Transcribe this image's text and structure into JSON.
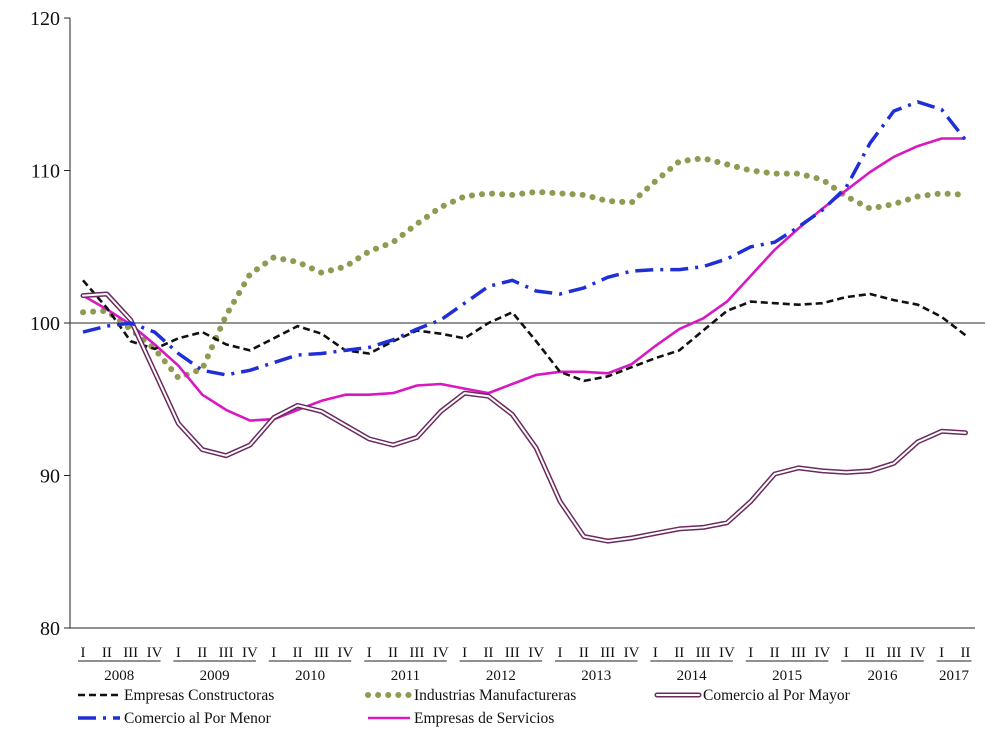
{
  "chart_data": {
    "type": "line",
    "title": "",
    "xlabel": "",
    "ylabel": "",
    "ylim": [
      80,
      120
    ],
    "yticks": [
      80,
      90,
      100,
      110,
      120
    ],
    "reference_line": 100,
    "grid": false,
    "legend_position": "bottom",
    "quarter_labels": [
      "I",
      "II",
      "III",
      "IV"
    ],
    "years": [
      "2008",
      "2009",
      "2010",
      "2011",
      "2012",
      "2013",
      "2014",
      "2015",
      "2016",
      "2017"
    ],
    "year_quarter_counts": [
      4,
      4,
      4,
      4,
      4,
      4,
      4,
      4,
      4,
      2
    ],
    "x": [
      "2008-I",
      "2008-II",
      "2008-III",
      "2008-IV",
      "2009-I",
      "2009-II",
      "2009-III",
      "2009-IV",
      "2010-I",
      "2010-II",
      "2010-III",
      "2010-IV",
      "2011-I",
      "2011-II",
      "2011-III",
      "2011-IV",
      "2012-I",
      "2012-II",
      "2012-III",
      "2012-IV",
      "2013-I",
      "2013-II",
      "2013-III",
      "2013-IV",
      "2014-I",
      "2014-II",
      "2014-III",
      "2014-IV",
      "2015-I",
      "2015-II",
      "2015-III",
      "2015-IV",
      "2016-I",
      "2016-II",
      "2016-III",
      "2016-IV",
      "2017-I",
      "2017-II"
    ],
    "series": [
      {
        "name": "Empresas Constructoras",
        "color": "#111111",
        "style": "dashed",
        "values": [
          102.8,
          101.0,
          98.8,
          98.3,
          99.0,
          99.4,
          98.6,
          98.2,
          99.0,
          99.8,
          99.3,
          98.2,
          98.0,
          98.8,
          99.5,
          99.3,
          99.0,
          100.0,
          100.7,
          98.8,
          96.8,
          96.2,
          96.5,
          97.1,
          97.7,
          98.2,
          99.5,
          100.8,
          101.4,
          101.3,
          101.2,
          101.3,
          101.7,
          101.9,
          101.5,
          101.2,
          100.4,
          99.2
        ]
      },
      {
        "name": "Industrias Manufactureras",
        "color": "#8f9b52",
        "style": "dotted",
        "values": [
          100.7,
          100.8,
          99.6,
          98.3,
          96.4,
          97.0,
          100.5,
          103.2,
          104.3,
          104.0,
          103.3,
          103.7,
          104.7,
          105.3,
          106.5,
          107.6,
          108.3,
          108.5,
          108.4,
          108.6,
          108.5,
          108.4,
          108.0,
          107.9,
          109.3,
          110.6,
          110.8,
          110.4,
          110.0,
          109.8,
          109.8,
          109.4,
          108.3,
          107.5,
          107.8,
          108.3,
          108.5,
          108.4
        ]
      },
      {
        "name": "Comercio al Por Mayor",
        "color": "#6b2a5e",
        "style": "double",
        "values": [
          101.8,
          101.9,
          100.2,
          96.8,
          93.4,
          91.7,
          91.3,
          92.0,
          93.8,
          94.6,
          94.2,
          93.3,
          92.4,
          92.0,
          92.5,
          94.2,
          95.4,
          95.2,
          94.0,
          91.8,
          88.3,
          86.0,
          85.7,
          85.9,
          86.2,
          86.5,
          86.6,
          86.9,
          88.3,
          90.1,
          90.5,
          90.3,
          90.2,
          90.3,
          90.8,
          92.2,
          92.9,
          92.8
        ]
      },
      {
        "name": "Comercio al Por Menor",
        "color": "#1f2fd6",
        "style": "dashdot",
        "values": [
          99.4,
          99.8,
          100.0,
          99.4,
          98.0,
          96.9,
          96.6,
          96.9,
          97.4,
          97.9,
          98.0,
          98.2,
          98.4,
          98.9,
          99.6,
          100.2,
          101.3,
          102.4,
          102.8,
          102.1,
          101.9,
          102.3,
          103.0,
          103.4,
          103.5,
          103.5,
          103.7,
          104.2,
          105.0,
          105.3,
          106.3,
          107.4,
          108.9,
          111.8,
          113.9,
          114.5,
          114.0,
          112.0
        ]
      },
      {
        "name": "Empresas de Servicios",
        "color": "#d818c0",
        "style": "solid",
        "values": [
          101.8,
          100.9,
          99.9,
          98.6,
          97.2,
          95.3,
          94.3,
          93.6,
          93.7,
          94.3,
          94.9,
          95.3,
          95.3,
          95.4,
          95.9,
          96.0,
          95.7,
          95.4,
          96.0,
          96.6,
          96.8,
          96.8,
          96.7,
          97.3,
          98.5,
          99.6,
          100.3,
          101.4,
          103.1,
          104.8,
          106.2,
          107.5,
          108.7,
          109.9,
          110.9,
          111.6,
          112.1,
          112.1
        ]
      }
    ]
  }
}
